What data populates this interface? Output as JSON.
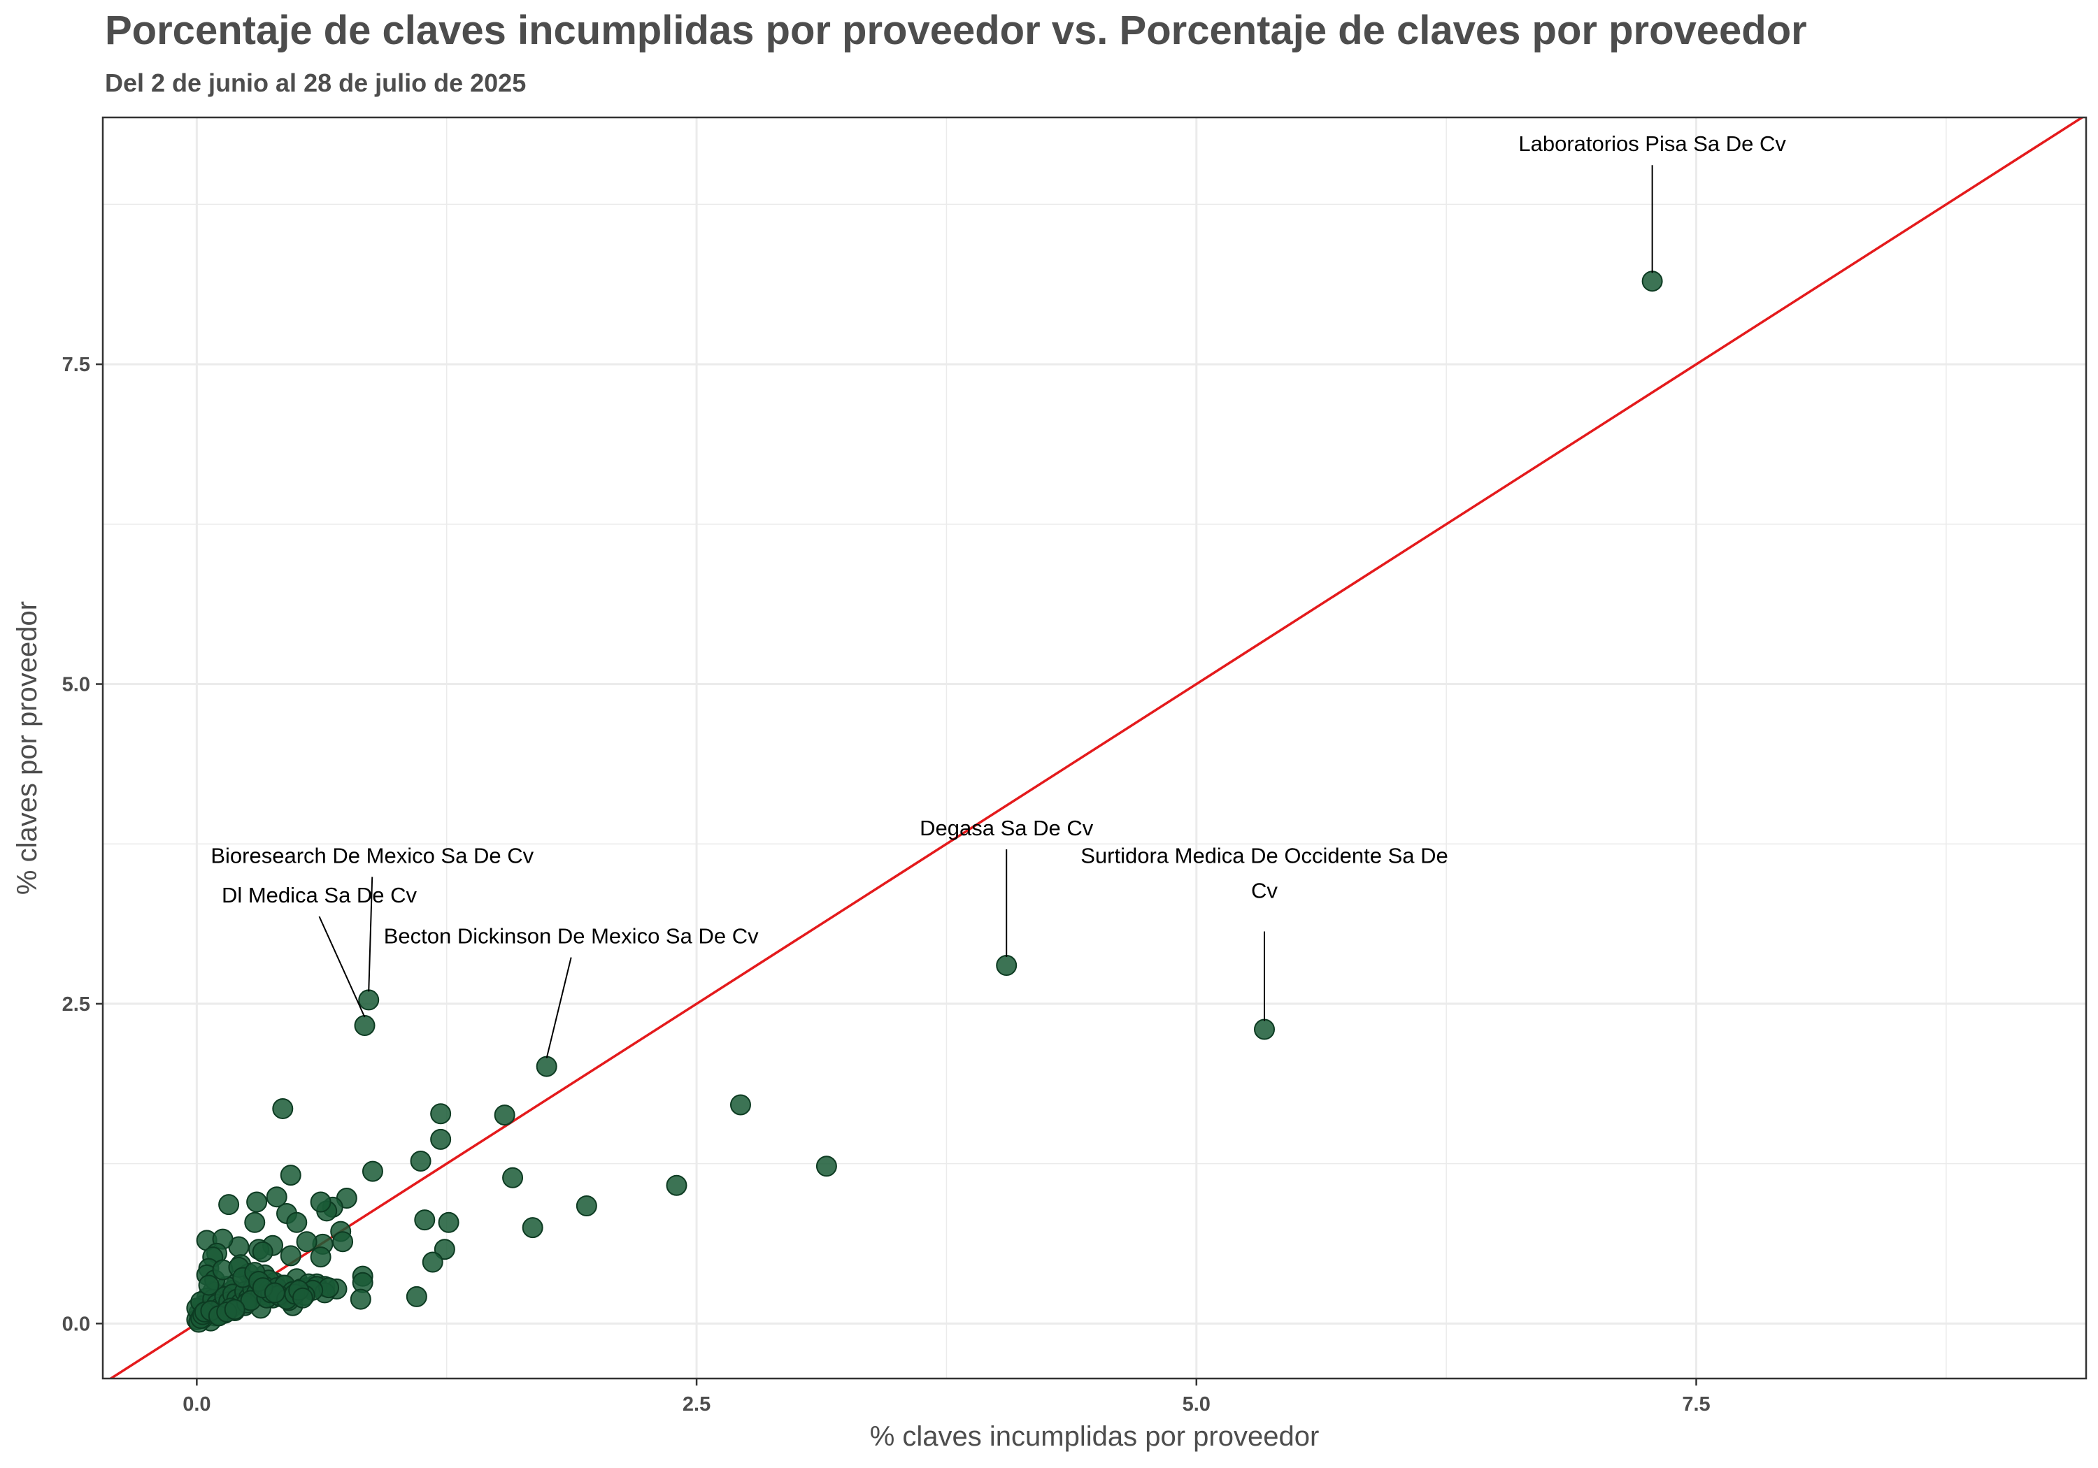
{
  "chart_data": {
    "type": "scatter",
    "title": "Porcentaje de claves incumplidas por proveedor vs. Porcentaje de claves por proveedor",
    "subtitle": "Del 2 de junio al 28 de julio de 2025",
    "xlabel": "% claves incumplidas por proveedor",
    "ylabel": "% claves por proveedor",
    "xlim": [
      -0.47,
      9.45
    ],
    "ylim": [
      -0.43,
      9.43
    ],
    "x_ticks": [
      0.0,
      2.5,
      5.0,
      7.5
    ],
    "y_ticks": [
      0.0,
      2.5,
      5.0,
      7.5
    ],
    "x_tick_labels": [
      "0.0",
      "2.5",
      "5.0",
      "7.5"
    ],
    "y_tick_labels": [
      "0.0",
      "2.5",
      "5.0",
      "7.5"
    ],
    "grid": true,
    "legend": "none",
    "reference_line": {
      "type": "identity",
      "slope": 1,
      "intercept": 0,
      "color": "#e41a1c"
    },
    "point_color": "#1a5a36",
    "annotations": [
      {
        "label": "Laboratorios Pisa Sa De Cv",
        "x": 7.28,
        "y": 8.15
      },
      {
        "label": "Degasa Sa De Cv",
        "x": 4.05,
        "y": 2.8
      },
      {
        "label": "Surtidora Medica De Occidente Sa De Cv",
        "x": 5.34,
        "y": 2.3
      },
      {
        "label": "Bioresearch De Mexico Sa De Cv",
        "x": 0.86,
        "y": 2.53
      },
      {
        "label": "Dl Medica Sa De Cv",
        "x": 0.84,
        "y": 2.33
      },
      {
        "label": "Becton Dickinson De Mexico Sa De Cv",
        "x": 1.75,
        "y": 2.01
      }
    ],
    "x": [
      7.28,
      4.05,
      5.34,
      0.86,
      0.84,
      1.75,
      0.43,
      2.72,
      1.22,
      1.54,
      3.15,
      1.22,
      1.12,
      1.58,
      2.4,
      0.88,
      1.95,
      1.14,
      1.26,
      1.68,
      1.24,
      1.18,
      1.1,
      0.83,
      0.83,
      0.82,
      0.75,
      0.68,
      0.72,
      0.65,
      0.62,
      0.63,
      0.55,
      0.47,
      0.4,
      0.38,
      0.3,
      0.29,
      0.31,
      0.16,
      0.21,
      0.45,
      0.5,
      0.62,
      0.73,
      0.05,
      0.13,
      0.1,
      0.08,
      0.06,
      0.34,
      0.39,
      0.33,
      0.47,
      0.38,
      0.48,
      0.22,
      0.26,
      0.6,
      0.64,
      0.7,
      0.5,
      0.55,
      0.43,
      0.36,
      0.28,
      0.2,
      0.18,
      0.15,
      0.12,
      0.1,
      0.08,
      0.06,
      0.05,
      0.04,
      0.03,
      0.02,
      0.01,
      0.0,
      0.0,
      0.02,
      0.04,
      0.06,
      0.08,
      0.1,
      0.12,
      0.14,
      0.16,
      0.18,
      0.2,
      0.22,
      0.24,
      0.26,
      0.28,
      0.3,
      0.32,
      0.34,
      0.36,
      0.4,
      0.44,
      0.48,
      0.52,
      0.56,
      0.6,
      0.64,
      0.66,
      0.58,
      0.54,
      0.42,
      0.46,
      0.32,
      0.24,
      0.14,
      0.09,
      0.07,
      0.03,
      0.11,
      0.17,
      0.19,
      0.25,
      0.27,
      0.35,
      0.37,
      0.41,
      0.45,
      0.49,
      0.51,
      0.53,
      0.05,
      0.09,
      0.13,
      0.21,
      0.23,
      0.29,
      0.31,
      0.33,
      0.39,
      0.01,
      0.02,
      0.03,
      0.04,
      0.07,
      0.11,
      0.15,
      0.19,
      0.06
    ],
    "y": [
      8.15,
      2.8,
      2.3,
      2.53,
      2.33,
      2.01,
      1.68,
      1.71,
      1.64,
      1.63,
      1.23,
      1.44,
      1.27,
      1.14,
      1.08,
      1.19,
      0.92,
      0.81,
      0.79,
      0.75,
      0.58,
      0.48,
      0.21,
      0.37,
      0.32,
      0.19,
      0.98,
      0.91,
      0.72,
      0.88,
      0.95,
      0.62,
      0.64,
      1.16,
      0.99,
      0.61,
      0.95,
      0.79,
      0.58,
      0.93,
      0.6,
      0.86,
      0.79,
      0.52,
      0.64,
      0.65,
      0.66,
      0.55,
      0.52,
      0.43,
      0.38,
      0.32,
      0.56,
      0.53,
      0.2,
      0.14,
      0.46,
      0.39,
      0.31,
      0.29,
      0.27,
      0.35,
      0.28,
      0.3,
      0.34,
      0.33,
      0.31,
      0.26,
      0.29,
      0.22,
      0.18,
      0.25,
      0.15,
      0.2,
      0.1,
      0.14,
      0.05,
      0.08,
      0.03,
      0.12,
      0.17,
      0.09,
      0.11,
      0.19,
      0.15,
      0.13,
      0.21,
      0.17,
      0.23,
      0.19,
      0.16,
      0.25,
      0.2,
      0.27,
      0.24,
      0.22,
      0.29,
      0.26,
      0.28,
      0.3,
      0.25,
      0.27,
      0.31,
      0.29,
      0.24,
      0.28,
      0.26,
      0.22,
      0.21,
      0.18,
      0.12,
      0.14,
      0.08,
      0.06,
      0.02,
      0.04,
      0.07,
      0.12,
      0.1,
      0.16,
      0.18,
      0.2,
      0.24,
      0.22,
      0.19,
      0.23,
      0.26,
      0.2,
      0.38,
      0.34,
      0.42,
      0.44,
      0.36,
      0.4,
      0.33,
      0.28,
      0.24,
      0.01,
      0.04,
      0.07,
      0.09,
      0.1,
      0.06,
      0.09,
      0.11,
      0.3
    ]
  }
}
